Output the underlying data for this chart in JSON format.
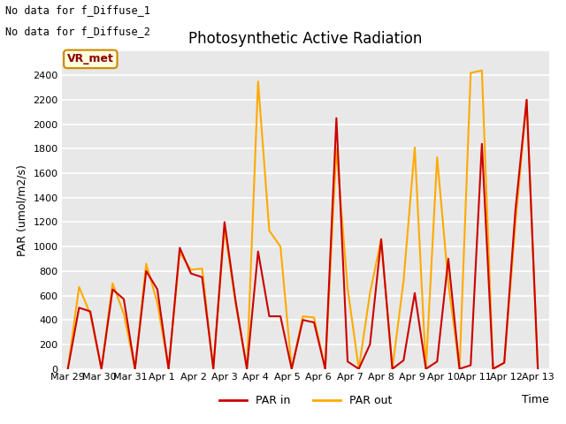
{
  "title": "Photosynthetic Active Radiation",
  "xlabel": "Time",
  "ylabel": "PAR (umol/m2/s)",
  "annotations": [
    "No data for f_Diffuse_1",
    "No data for f_Diffuse_2"
  ],
  "vr_met_label": "VR_met",
  "x_tick_labels": [
    "Mar 29",
    "Mar 30",
    "Mar 31",
    "Apr 1",
    "Apr 2",
    "Apr 3",
    "Apr 4",
    "Apr 5",
    "Apr 6",
    "Apr 7",
    "Apr 8",
    "Apr 9",
    "Apr 10",
    "Apr 11",
    "Apr 12",
    "Apr 13"
  ],
  "ylim": [
    0,
    2600
  ],
  "yticks": [
    0,
    200,
    400,
    600,
    800,
    1000,
    1200,
    1400,
    1600,
    1800,
    2000,
    2200,
    2400
  ],
  "legend_labels": [
    "PAR in",
    "PAR out"
  ],
  "par_in_color": "#cc0000",
  "par_out_color": "#ffaa00",
  "background_color": "#e8e8e8",
  "par_in_y": [
    0,
    500,
    470,
    0,
    650,
    570,
    0,
    800,
    650,
    0,
    990,
    780,
    750,
    0,
    1200,
    550,
    0,
    960,
    430,
    430,
    0,
    400,
    380,
    0,
    2050,
    60,
    0,
    200,
    1060,
    0,
    70,
    620,
    0,
    60,
    900,
    0,
    30,
    1840,
    0,
    50,
    1300,
    2200,
    0
  ],
  "par_out_y": [
    0,
    670,
    450,
    0,
    700,
    450,
    0,
    860,
    540,
    0,
    950,
    810,
    820,
    0,
    1150,
    530,
    0,
    2350,
    1130,
    1000,
    0,
    430,
    420,
    0,
    1800,
    660,
    0,
    620,
    1060,
    0,
    720,
    1810,
    0,
    1730,
    700,
    0,
    2420,
    2440,
    0,
    50,
    1190,
    2200,
    0
  ],
  "x_positions": [
    0,
    1,
    2,
    3,
    4,
    5,
    6,
    7,
    8,
    9,
    10,
    11,
    12,
    13,
    14,
    15,
    16,
    17,
    18,
    19,
    20,
    21,
    22,
    23,
    24,
    25,
    26,
    27,
    28,
    29,
    30,
    31,
    32,
    33,
    34,
    35,
    36,
    37,
    38,
    39,
    40,
    41,
    42
  ],
  "figsize": [
    6.4,
    4.8
  ],
  "dpi": 100,
  "title_fontsize": 12,
  "tick_fontsize": 8,
  "ylabel_fontsize": 9,
  "xlabel_fontsize": 9
}
